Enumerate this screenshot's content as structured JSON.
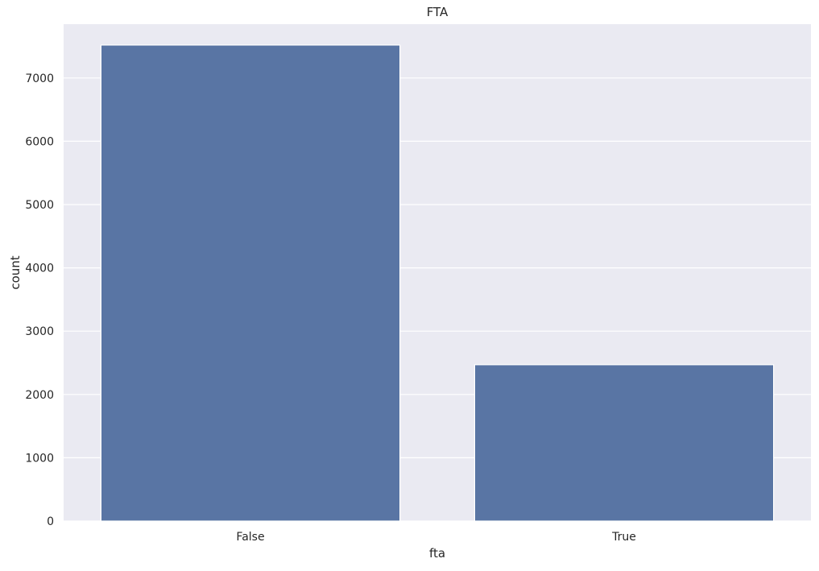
{
  "chart_data": {
    "type": "bar",
    "title": "FTA",
    "xlabel": "fta",
    "ylabel": "count",
    "categories": [
      "False",
      "True"
    ],
    "values": [
      7520,
      2470
    ],
    "ylim": [
      0,
      7850
    ],
    "yticks": [
      0,
      1000,
      2000,
      3000,
      4000,
      5000,
      6000,
      7000
    ],
    "grid": true,
    "colors": {
      "bar": "#5975a4",
      "plot_background": "#eaeaf2",
      "grid": "#ffffff"
    }
  }
}
